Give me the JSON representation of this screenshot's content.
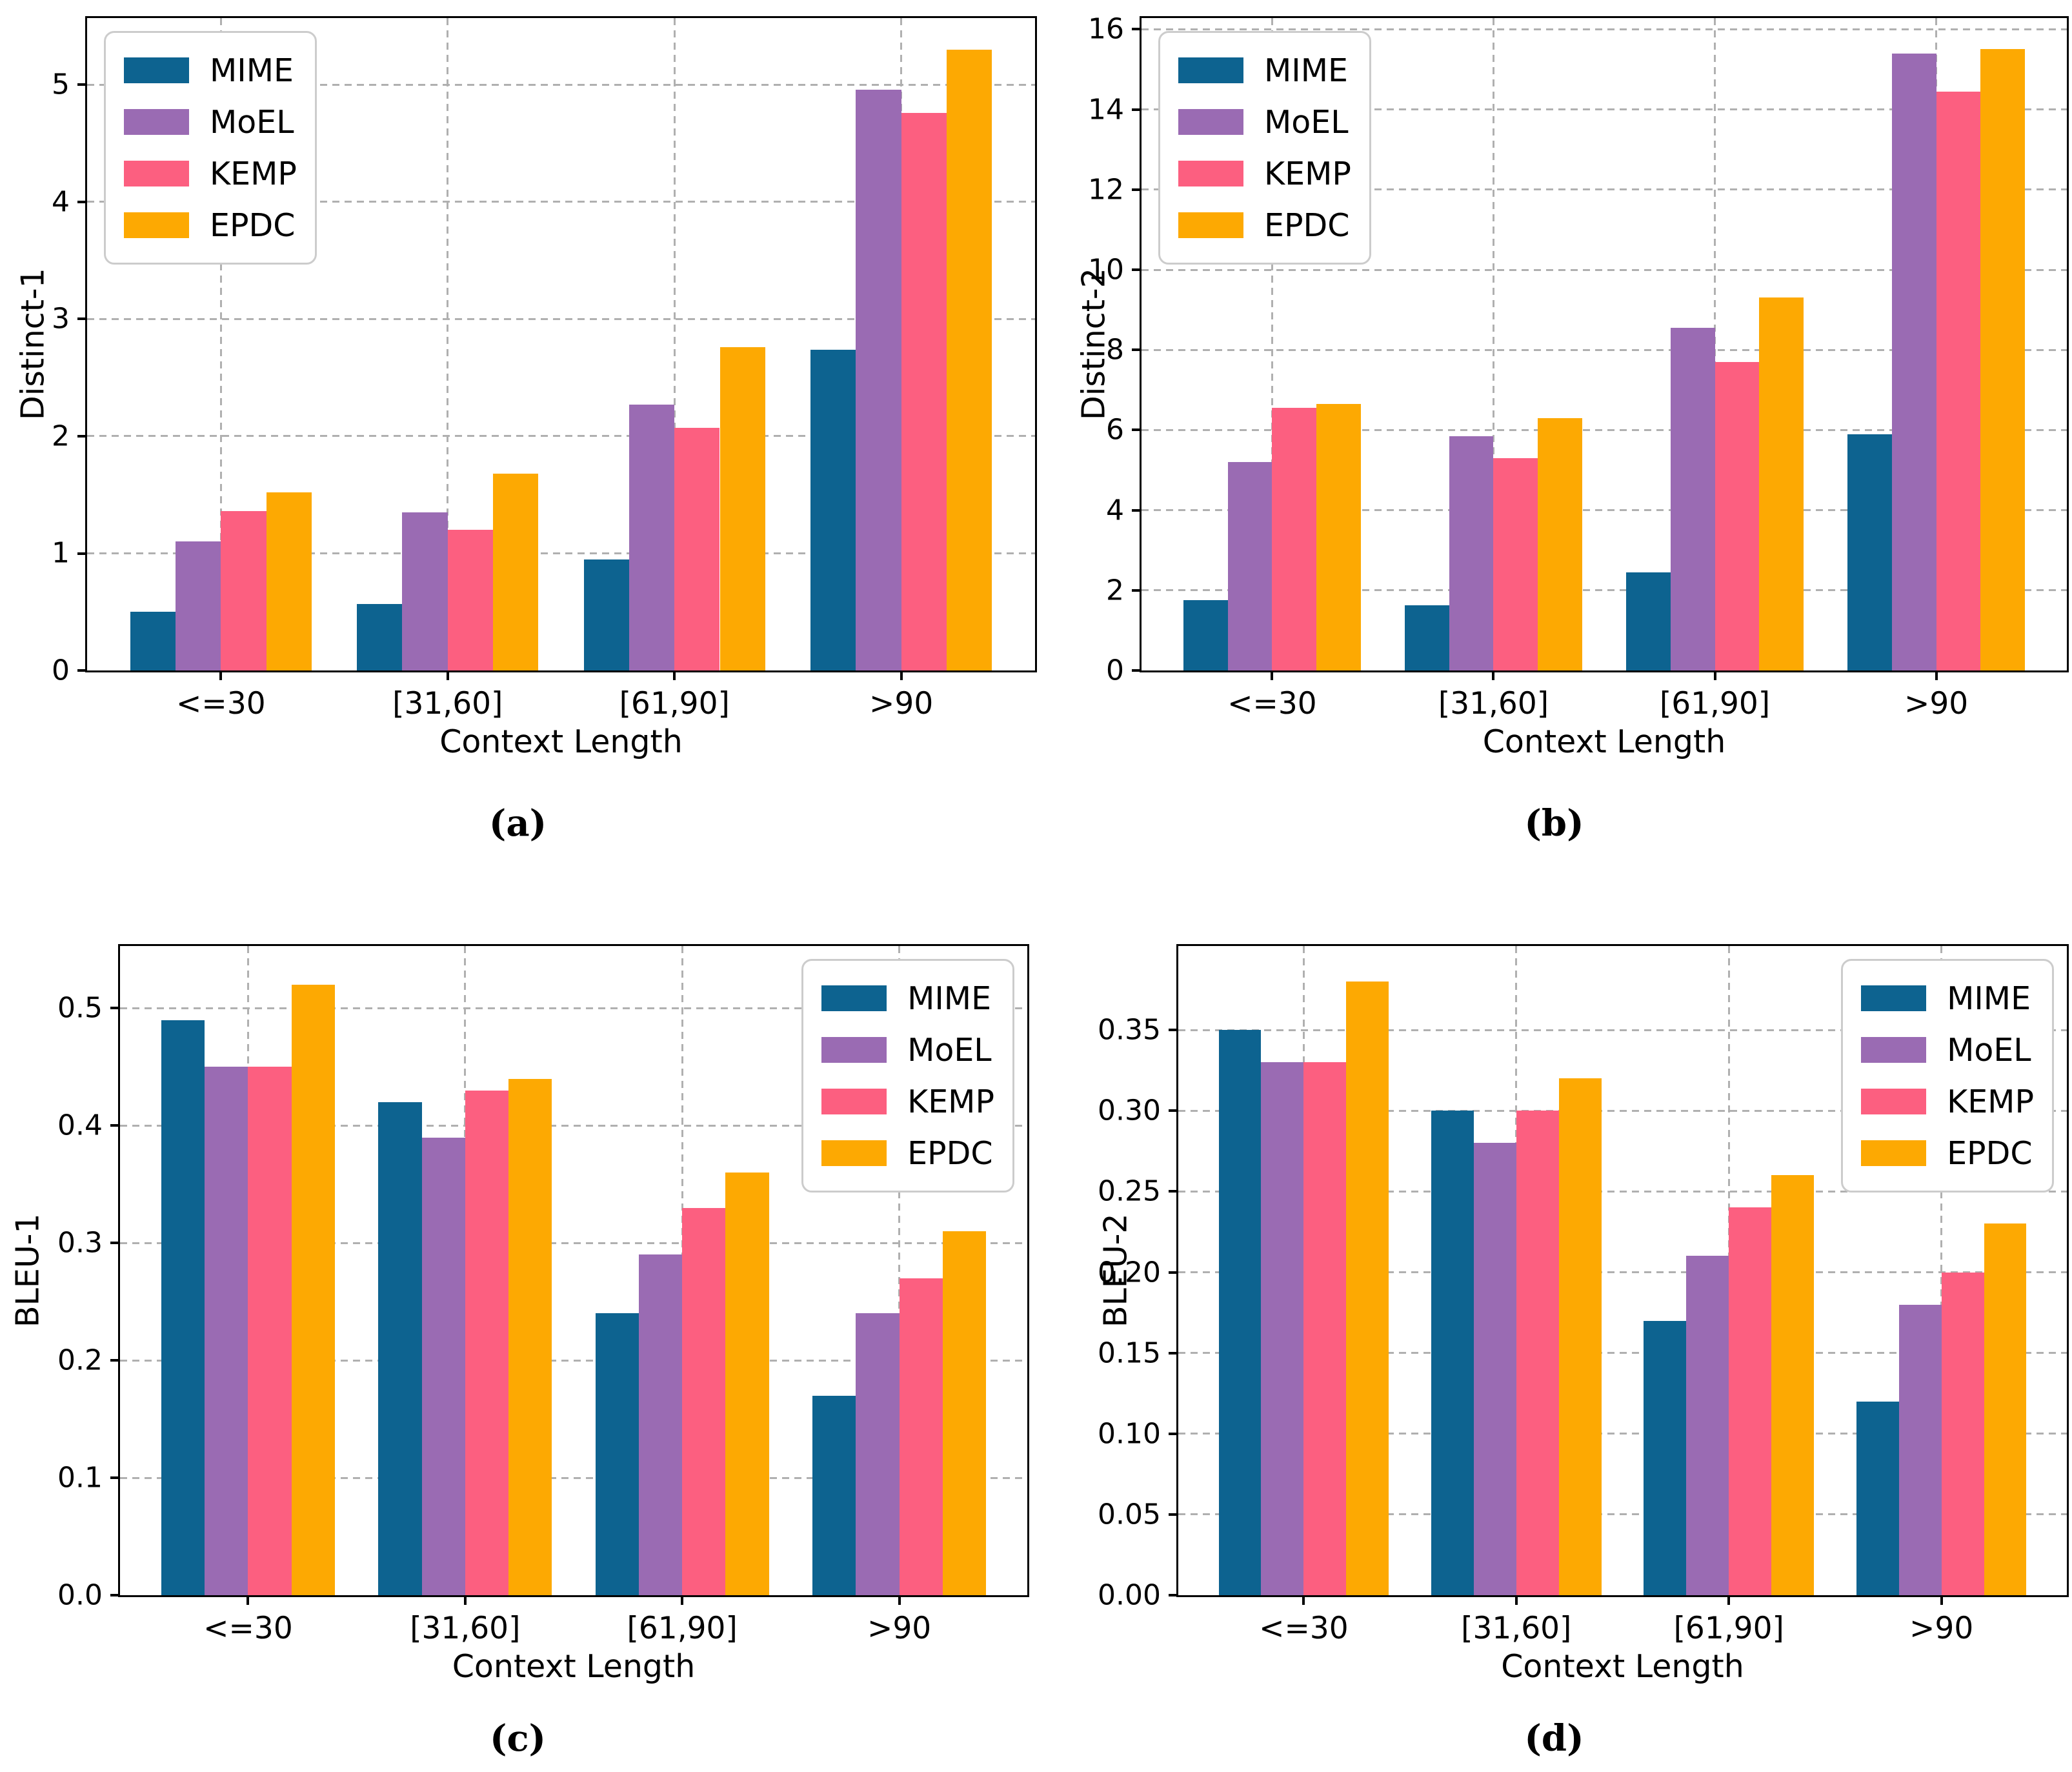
{
  "figure": {
    "background": "#ffffff",
    "axis_color": "#000000",
    "grid_color": "#b0b0b0",
    "legend_border_color": "#cccccc",
    "series_names": [
      "MIME",
      "MoEL",
      "KEMP",
      "EPDC"
    ],
    "series_colors": {
      "MIME": "#0d6390",
      "MoEL": "#9a6bb3",
      "KEMP": "#fc5f80",
      "EPDC": "#fda902"
    },
    "captions": [
      "(a)",
      "(b)",
      "(c)",
      "(d)"
    ]
  },
  "chart_data": [
    {
      "type": "bar",
      "panel": "(a)",
      "title": "",
      "ylabel": "Distinct-1",
      "xlabel": "Context Length",
      "categories": [
        "<=30",
        "[31,60]",
        "[61,90]",
        ">90"
      ],
      "series": [
        {
          "name": "MIME",
          "values": [
            0.5,
            0.57,
            0.95,
            2.74
          ]
        },
        {
          "name": "MoEL",
          "values": [
            1.1,
            1.35,
            2.27,
            4.96
          ]
        },
        {
          "name": "KEMP",
          "values": [
            1.36,
            1.2,
            2.07,
            4.76
          ]
        },
        {
          "name": "EPDC",
          "values": [
            1.52,
            1.68,
            2.76,
            5.3
          ]
        }
      ],
      "ylim": [
        0,
        5.57
      ],
      "ytick_values": [
        0,
        1,
        2,
        3,
        4,
        5
      ],
      "ytick_labels": [
        "0",
        "1",
        "2",
        "3",
        "4",
        "5"
      ],
      "grid": true,
      "legend_position": "top-left"
    },
    {
      "type": "bar",
      "panel": "(b)",
      "title": "",
      "ylabel": "Distinct-2",
      "xlabel": "Context Length",
      "categories": [
        "<=30",
        "[31,60]",
        "[61,90]",
        ">90"
      ],
      "series": [
        {
          "name": "MIME",
          "values": [
            1.75,
            1.62,
            2.45,
            5.9
          ]
        },
        {
          "name": "MoEL",
          "values": [
            5.2,
            5.85,
            8.55,
            15.4
          ]
        },
        {
          "name": "KEMP",
          "values": [
            6.55,
            5.3,
            7.7,
            14.45
          ]
        },
        {
          "name": "EPDC",
          "values": [
            6.65,
            6.3,
            9.3,
            15.5
          ]
        }
      ],
      "ylim": [
        0,
        16.28
      ],
      "ytick_values": [
        0,
        2,
        4,
        6,
        8,
        10,
        12,
        14,
        16
      ],
      "ytick_labels": [
        "0",
        "2",
        "4",
        "6",
        "8",
        "10",
        "12",
        "14",
        "16"
      ],
      "grid": true,
      "legend_position": "top-left"
    },
    {
      "type": "bar",
      "panel": "(c)",
      "title": "",
      "ylabel": "BLEU-1",
      "xlabel": "Context Length",
      "categories": [
        "<=30",
        "[31,60]",
        "[61,90]",
        ">90"
      ],
      "series": [
        {
          "name": "MIME",
          "values": [
            0.49,
            0.42,
            0.24,
            0.17
          ]
        },
        {
          "name": "MoEL",
          "values": [
            0.45,
            0.39,
            0.29,
            0.24
          ]
        },
        {
          "name": "KEMP",
          "values": [
            0.45,
            0.43,
            0.33,
            0.27
          ]
        },
        {
          "name": "EPDC",
          "values": [
            0.52,
            0.44,
            0.36,
            0.31
          ]
        }
      ],
      "ylim": [
        0,
        0.553
      ],
      "ytick_values": [
        0,
        0.1,
        0.2,
        0.3,
        0.4,
        0.5
      ],
      "ytick_labels": [
        "0.0",
        "0.1",
        "0.2",
        "0.3",
        "0.4",
        "0.5"
      ],
      "grid": true,
      "legend_position": "top-right"
    },
    {
      "type": "bar",
      "panel": "(d)",
      "title": "",
      "ylabel": "BLEU-2",
      "xlabel": "Context Length",
      "categories": [
        "<=30",
        "[31,60]",
        "[61,90]",
        ">90"
      ],
      "series": [
        {
          "name": "MIME",
          "values": [
            0.35,
            0.3,
            0.17,
            0.12
          ]
        },
        {
          "name": "MoEL",
          "values": [
            0.33,
            0.28,
            0.21,
            0.18
          ]
        },
        {
          "name": "KEMP",
          "values": [
            0.33,
            0.3,
            0.24,
            0.2
          ]
        },
        {
          "name": "EPDC",
          "values": [
            0.38,
            0.32,
            0.26,
            0.23
          ]
        }
      ],
      "ylim": [
        0,
        0.402
      ],
      "ytick_values": [
        0,
        0.05,
        0.1,
        0.15,
        0.2,
        0.25,
        0.3,
        0.35
      ],
      "ytick_labels": [
        "0.00",
        "0.05",
        "0.10",
        "0.15",
        "0.20",
        "0.25",
        "0.30",
        "0.35"
      ],
      "grid": true,
      "legend_position": "top-right"
    }
  ]
}
